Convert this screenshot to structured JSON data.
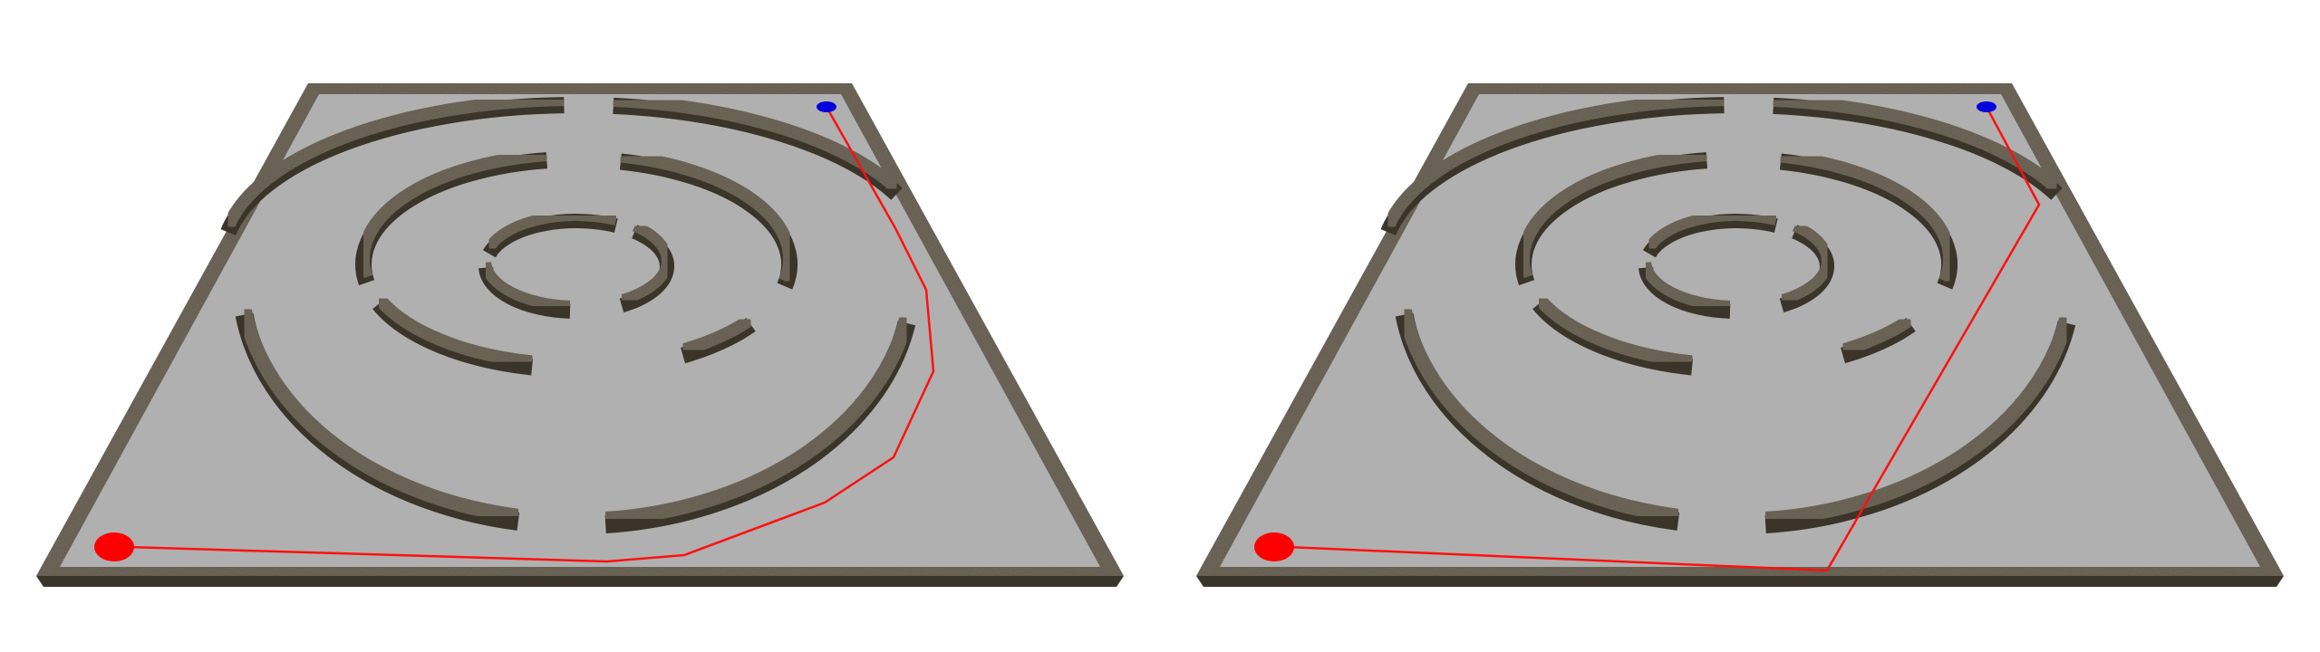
{
  "scene": {
    "background_color": "#ffffff",
    "floor_color": "#b0b0b0",
    "wall_color": "#5e5749",
    "wall_side_color": "#3a3429",
    "start_marker": {
      "name": "start",
      "color": "#ff0000"
    },
    "goal_marker": {
      "name": "goal",
      "color": "#0000dd"
    },
    "path_color": "#ff1010"
  },
  "panels": [
    {
      "name": "left",
      "path_kind": "following-the-corridors"
    },
    {
      "name": "right",
      "path_kind": "straight-segments-through-walls"
    }
  ]
}
